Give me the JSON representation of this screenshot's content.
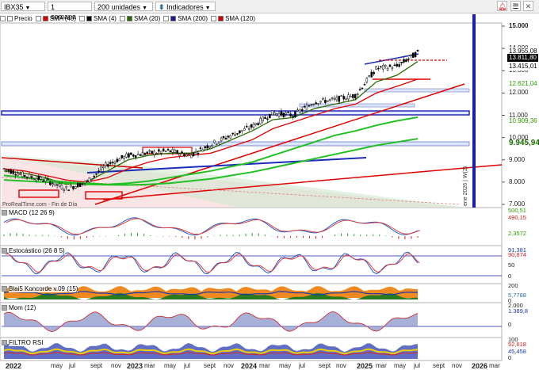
{
  "toolbar": {
    "symbol": "IBX35",
    "interval": "1 semana",
    "units": "200 unidades",
    "indicators": "Indicadores",
    "bell_icon": "bell-icon",
    "menu_icon": "hamburger-icon"
  },
  "legend": [
    {
      "label": "Precio",
      "color": "#ffffff"
    },
    {
      "label": "SMA (40)",
      "color": "#e00000"
    },
    {
      "label": "SMA (4)",
      "color": "#000000"
    },
    {
      "label": "SMA (20)",
      "color": "#2a6a00"
    },
    {
      "label": "SMA (200)",
      "color": "#1c1c8c"
    },
    {
      "label": "SMA (120)",
      "color": "#d00000"
    }
  ],
  "price_axis": [
    "15.000",
    "14.000",
    "13.000",
    "12.000",
    "11.000",
    "10.000",
    "9.000",
    "8.000",
    "7.000"
  ],
  "price_tags": [
    {
      "text": "13.955,08",
      "bg": "#ffffff",
      "fg": "#000000"
    },
    {
      "text": "13.811,80",
      "bg": "#000000",
      "fg": "#ffffff"
    },
    {
      "text": "13.415,01",
      "bg": "#ffffff",
      "fg": "#000000"
    },
    {
      "text": "12.621,04",
      "bg": "#ffffff",
      "fg": "#2a9a00"
    },
    {
      "text": "10.909,36",
      "bg": "#ffffff",
      "fg": "#2a9a00"
    },
    {
      "text": "9.945,94",
      "bg": "#ffffff",
      "fg": "#1a6a00"
    }
  ],
  "watermark": "ProRealTime.com - Fin de Día",
  "vertical_date_label": "ene 2026 | W(2)",
  "panels": [
    {
      "title": "MACD (12 26 9)",
      "tags": [
        "500,51",
        "490,15",
        "2,3572"
      ]
    },
    {
      "title": "Estocástico (26 8 5)",
      "tags": [
        "91,381",
        "90,874",
        "50",
        "0"
      ]
    },
    {
      "title": "Blai5 Koncorde v.09 (15)",
      "tags": [
        "200",
        "5,7788",
        "0"
      ]
    },
    {
      "title": "Mom (12)",
      "tags": [
        "2.000",
        "1.389,8",
        "0"
      ]
    },
    {
      "title": "FILTRO RSI",
      "tags": [
        "100",
        "52,618",
        "45,458",
        "0"
      ]
    }
  ],
  "time_axis": [
    "2022",
    "may",
    "jul",
    "sept",
    "nov",
    "2023",
    "mar",
    "may",
    "jul",
    "sept",
    "nov",
    "2024",
    "mar",
    "may",
    "jul",
    "sept",
    "nov",
    "2025",
    "mar",
    "may",
    "jul",
    "sept",
    "nov",
    "2026",
    "mar"
  ],
  "chart_data": {
    "type": "line",
    "title": "IBX35",
    "x": [
      "2022",
      "may",
      "jul",
      "sept",
      "nov",
      "2023",
      "mar",
      "may",
      "jul",
      "sept",
      "nov",
      "2024",
      "mar",
      "may",
      "jul",
      "sept",
      "nov",
      "2025",
      "mar",
      "may",
      "jul"
    ],
    "series": [
      {
        "name": "Precio",
        "values": [
          8600,
          8300,
          8100,
          7700,
          8000,
          8800,
          9200,
          9300,
          9400,
          9200,
          9700,
          10100,
          10500,
          11100,
          11000,
          11600,
          11700,
          11900,
          13100,
          13200,
          13811.8
        ]
      },
      {
        "name": "SMA (20)",
        "values": [
          8500,
          8400,
          8200,
          7900,
          8000,
          8500,
          9000,
          9200,
          9300,
          9300,
          9500,
          9900,
          10300,
          10800,
          10900,
          11300,
          11500,
          11700,
          12500,
          12800,
          13415.01
        ]
      },
      {
        "name": "SMA (40)",
        "values": [
          8600,
          8500,
          8300,
          8100,
          8000,
          8200,
          8600,
          8900,
          9100,
          9200,
          9300,
          9600,
          9900,
          10400,
          10700,
          11000,
          11300,
          11500,
          12000,
          12300,
          12621.04
        ]
      },
      {
        "name": "SMA (120)",
        "values": [
          8300,
          8200,
          8100,
          8000,
          7950,
          7900,
          7950,
          8050,
          8200,
          8350,
          8500,
          8700,
          8900,
          9200,
          9500,
          9800,
          10100,
          10300,
          10550,
          10750,
          10909.36
        ]
      },
      {
        "name": "SMA (200)",
        "values": [
          8100,
          8050,
          8000,
          7950,
          7900,
          7880,
          7870,
          7900,
          7950,
          8050,
          8150,
          8300,
          8450,
          8650,
          8850,
          9050,
          9250,
          9450,
          9650,
          9800,
          9945.94
        ]
      }
    ],
    "ylim": [
      7000,
      15000
    ],
    "grid": false
  }
}
